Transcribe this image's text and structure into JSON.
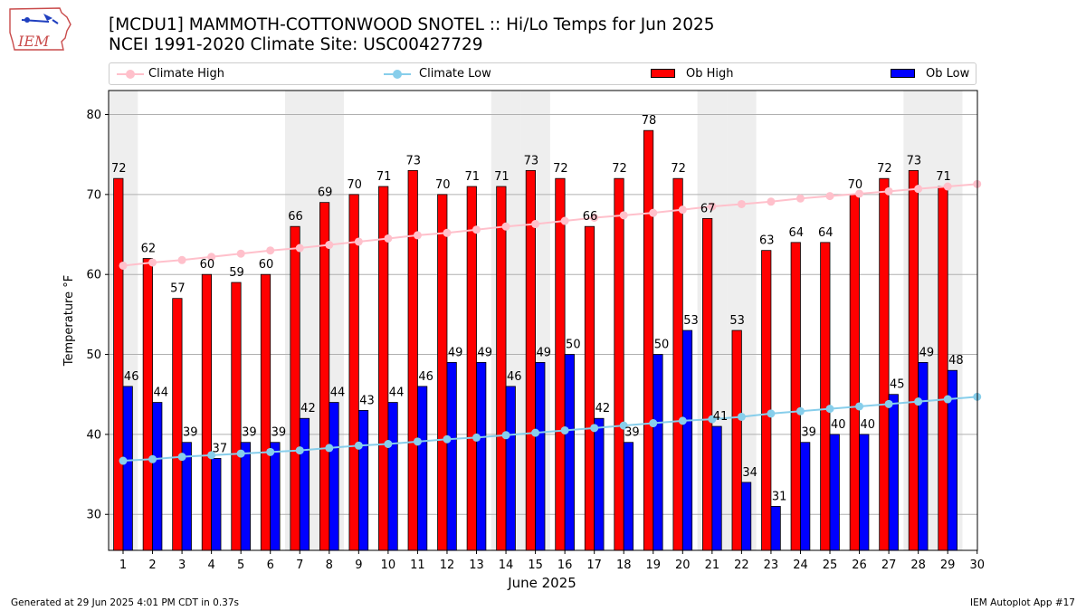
{
  "header": {
    "title_line1": "[MCDU1] MAMMOTH-COTTONWOOD SNOTEL :: Hi/Lo Temps for Jun 2025",
    "title_line2": "NCEI 1991-2020 Climate Site: USC00427729"
  },
  "logo": {
    "text": "IEM"
  },
  "footer": {
    "left": "Generated at 29 Jun 2025 4:01 PM CDT in 0.37s",
    "right": "IEM Autoplot App #17"
  },
  "colors": {
    "ob_high": "#ff0000",
    "ob_low": "#0000ff",
    "climate_high": "#ffc0cb",
    "climate_low": "#87ceeb",
    "weekend_band": "#eeeeee"
  },
  "chart_data": {
    "type": "bar",
    "xlabel": "June 2025",
    "ylabel": "Temperature °F",
    "ylim": [
      25.5,
      83
    ],
    "yticks": [
      30,
      40,
      50,
      60,
      70,
      80
    ],
    "x": [
      1,
      2,
      3,
      4,
      5,
      6,
      7,
      8,
      9,
      10,
      11,
      12,
      13,
      14,
      15,
      16,
      17,
      18,
      19,
      20,
      21,
      22,
      23,
      24,
      25,
      26,
      27,
      28,
      29,
      30
    ],
    "weekend_days": [
      1,
      7,
      8,
      14,
      15,
      21,
      22,
      28,
      29
    ],
    "grid": "horizontal",
    "legend": "top",
    "series": [
      {
        "name": "Climate High",
        "kind": "line",
        "values": [
          61.1,
          61.5,
          61.8,
          62.2,
          62.6,
          63.0,
          63.3,
          63.7,
          64.1,
          64.5,
          64.9,
          65.2,
          65.6,
          66.0,
          66.3,
          66.7,
          67.1,
          67.4,
          67.7,
          68.1,
          68.5,
          68.8,
          69.1,
          69.5,
          69.8,
          70.1,
          70.4,
          70.7,
          71.0,
          71.3
        ]
      },
      {
        "name": "Climate Low",
        "kind": "line",
        "values": [
          36.7,
          36.9,
          37.2,
          37.4,
          37.6,
          37.8,
          38.0,
          38.3,
          38.6,
          38.8,
          39.1,
          39.4,
          39.6,
          39.9,
          40.2,
          40.5,
          40.8,
          41.1,
          41.4,
          41.7,
          41.9,
          42.2,
          42.6,
          42.9,
          43.2,
          43.5,
          43.8,
          44.1,
          44.4,
          44.7
        ]
      },
      {
        "name": "Ob High",
        "kind": "bar",
        "values": [
          72,
          62,
          57,
          60,
          59,
          60,
          66,
          69,
          70,
          71,
          73,
          70,
          71,
          71,
          73,
          72,
          66,
          72,
          78,
          72,
          67,
          53,
          63,
          64,
          64,
          70,
          72,
          73,
          71,
          null
        ]
      },
      {
        "name": "Ob Low",
        "kind": "bar",
        "values": [
          46,
          44,
          39,
          37,
          39,
          39,
          42,
          44,
          43,
          44,
          46,
          49,
          49,
          46,
          49,
          50,
          42,
          39,
          50,
          53,
          41,
          34,
          31,
          39,
          40,
          40,
          45,
          49,
          48,
          null
        ]
      }
    ]
  }
}
